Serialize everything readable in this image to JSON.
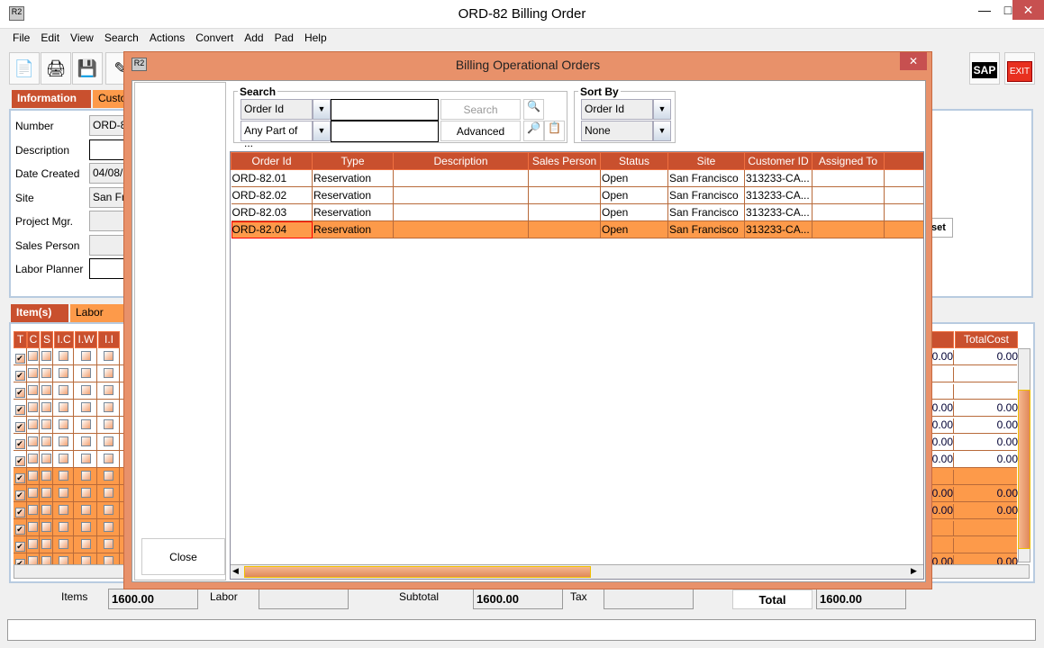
{
  "window": {
    "title": "ORD-82 Billing Order",
    "logo": "R2"
  },
  "menu": [
    "File",
    "Edit",
    "View",
    "Search",
    "Actions",
    "Convert",
    "Add",
    "Pad",
    "Help"
  ],
  "toolbar": {
    "icons": [
      "new-document-icon",
      "print-icon",
      "save-icon",
      "edit-pencil-icon"
    ],
    "sap_label": "SAP",
    "exit_label": "EXIT"
  },
  "info_tabs": [
    "Information",
    "Custo"
  ],
  "info": {
    "fields": [
      {
        "label": "Number",
        "value": "ORD-8"
      },
      {
        "label": "Description",
        "value": ""
      },
      {
        "label": "Date Created",
        "value": "04/08/2"
      },
      {
        "label": "Site",
        "value": "San Fr"
      },
      {
        "label": "Project Mgr.",
        "value": ""
      },
      {
        "label": "Sales Person",
        "value": ""
      },
      {
        "label": "Labor Planner",
        "value": ""
      }
    ],
    "reset_label": "set"
  },
  "item_tabs": [
    "Item(s)",
    "Labor"
  ],
  "grid": {
    "headers": [
      "T",
      "C",
      "S",
      "I.C",
      "I.W",
      "I.I"
    ],
    "right_headers": [
      "t",
      "TotalCost"
    ],
    "rows": [
      [
        "0.00",
        "0.00"
      ],
      [
        "",
        ""
      ],
      [
        "",
        ""
      ],
      [
        "0.00",
        "0.00"
      ],
      [
        "0.00",
        "0.00"
      ],
      [
        "0.00",
        "0.00"
      ],
      [
        "0.00",
        "0.00"
      ],
      [
        "",
        ""
      ],
      [
        "0.00",
        "0.00"
      ],
      [
        "0.00",
        "0.00"
      ],
      [
        "",
        ""
      ],
      [
        "",
        ""
      ],
      [
        "0.00",
        "0.00"
      ]
    ],
    "white_rows": 7
  },
  "totals": {
    "items_label": "Items",
    "items": "1600.00",
    "labor_label": "Labor",
    "labor": "",
    "subtotal_label": "Subtotal",
    "subtotal": "1600.00",
    "tax_label": "Tax",
    "tax": "",
    "total_label": "Total",
    "total": "1600.00"
  },
  "dialog": {
    "title": "Billing Operational Orders",
    "logo": "R2",
    "close_label": "Close",
    "search": {
      "label": "Search",
      "field_select": "Order Id",
      "match_select": "Any Part of ...",
      "query1": "",
      "query2": "",
      "search_label": "Search",
      "advanced_label": "Advanced"
    },
    "sort": {
      "label": "Sort By",
      "primary": "Order Id",
      "secondary": "None"
    },
    "columns": [
      "Order Id",
      "Type",
      "Description",
      "Sales Person",
      "Status",
      "Site",
      "Customer ID",
      "Assigned To",
      ""
    ],
    "rows": [
      [
        "ORD-82.01",
        "Reservation",
        "",
        "",
        "Open",
        "San Francisco",
        "313233-CA...",
        "",
        ""
      ],
      [
        "ORD-82.02",
        "Reservation",
        "",
        "",
        "Open",
        "San Francisco",
        "313233-CA...",
        "",
        ""
      ],
      [
        "ORD-82.03",
        "Reservation",
        "",
        "",
        "Open",
        "San Francisco",
        "313233-CA...",
        "",
        ""
      ],
      [
        "ORD-82.04",
        "Reservation",
        "",
        "",
        "Open",
        "San Francisco",
        "313233-CA...",
        "",
        ""
      ]
    ],
    "selected_row": 3
  },
  "colors": {
    "accent": "#c9502e",
    "tab_orange": "#fd9a4a",
    "row_selected": "#fd9a4a",
    "dialog_frame": "#e8916a"
  }
}
